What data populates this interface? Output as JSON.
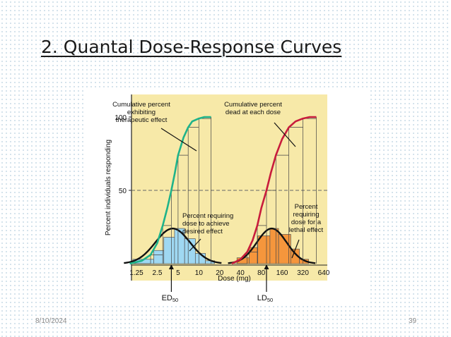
{
  "slide": {
    "title": "2. Quantal Dose-Response Curves",
    "date": "8/10/2024",
    "page_number": "39"
  },
  "colors": {
    "panel_bg": "#f7e9a8",
    "therapeutic_curve": "#1fb38a",
    "lethal_curve": "#c81c3c",
    "therapeutic_fill": "#9fd8f2",
    "lethal_fill": "#f5963c",
    "bell_curve": "#111111"
  },
  "chart_data": {
    "type": "bar",
    "ylabel": "Percent individuals responding",
    "xlabel": "Dose (mg)",
    "x_ticks": [
      "1.25",
      "2.5",
      "5",
      "10",
      "20",
      "40",
      "80",
      "160",
      "320",
      "640"
    ],
    "y_ticks": [
      "50",
      "100"
    ],
    "ylim": [
      0,
      100
    ],
    "reference_line": {
      "y": 50,
      "style": "dashed"
    },
    "series": [
      {
        "name": "Cumulative percent exhibiting therapeutic effect",
        "kind": "cumulative-line",
        "x": [
          1.0,
          1.5,
          2.0,
          2.5,
          3.0,
          3.5,
          4.0,
          4.5,
          5.0,
          6.0,
          7.0,
          8.0,
          10.0,
          12.0,
          15.0
        ],
        "values": [
          0,
          2,
          6,
          14,
          26,
          38,
          50,
          62,
          74,
          86,
          93,
          97,
          99,
          100,
          100
        ]
      },
      {
        "name": "Percent requiring dose to achieve desired effect",
        "kind": "histogram",
        "x": [
          1.25,
          2.5,
          3.5,
          5,
          7,
          10,
          14
        ],
        "values": [
          3,
          9,
          18,
          24,
          17,
          7,
          2
        ]
      },
      {
        "name": "Cumulative percent dead at each dose",
        "kind": "cumulative-line",
        "x": [
          30,
          40,
          50,
          60,
          70,
          80,
          95,
          110,
          130,
          160,
          200,
          250,
          320,
          400,
          500
        ],
        "values": [
          0,
          3,
          8,
          16,
          26,
          38,
          50,
          62,
          74,
          85,
          93,
          97,
          99,
          100,
          100
        ]
      },
      {
        "name": "Percent requiring dose for a lethal effect",
        "kind": "histogram",
        "x": [
          40,
          60,
          80,
          120,
          160,
          240,
          320
        ],
        "values": [
          4,
          11,
          19,
          24,
          20,
          10,
          3
        ]
      }
    ],
    "annotations": [
      {
        "text": "Cumulative percent exhibiting therapeutic effect",
        "lines": [
          "Cumulative percent",
          "exhibiting",
          "therapeutic effect"
        ]
      },
      {
        "text": "Cumulative percent dead at each dose",
        "lines": [
          "Cumulative percent",
          "dead at each dose"
        ]
      },
      {
        "text": "Percent requiring dose to achieve desired effect",
        "lines": [
          "Percent requiring",
          "dose to achieve",
          "desired effect"
        ]
      },
      {
        "text": "Percent requiring dose for a lethal effect",
        "lines": [
          "Percent",
          "requiring",
          "dose for a",
          "lethal effect"
        ]
      }
    ],
    "markers": [
      {
        "label": "ED50",
        "base": "ED",
        "sub": "50",
        "x": 4
      },
      {
        "label": "LD50",
        "base": "LD",
        "sub": "50",
        "x": 95
      }
    ]
  }
}
